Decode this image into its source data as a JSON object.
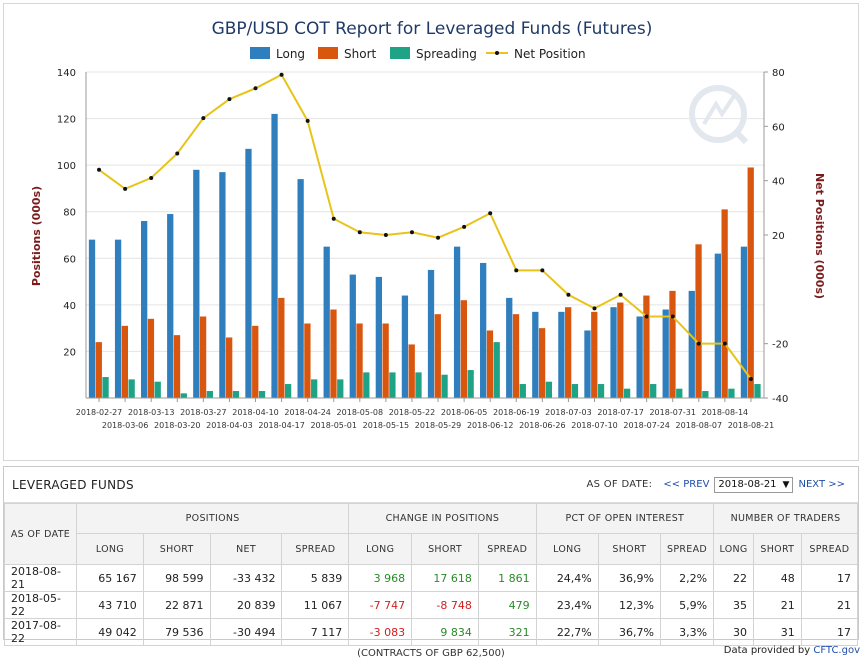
{
  "chart_data": {
    "type": "bar",
    "title": "GBP/USD COT Report for Leveraged Funds (Futures)",
    "ylabel": "Positions (000s)",
    "y2label": "Net Positions (000s)",
    "ylim": [
      0,
      140
    ],
    "y2lim": [
      -40,
      80
    ],
    "yticks": [
      20,
      40,
      60,
      80,
      100,
      120,
      140
    ],
    "y2ticks": [
      -40,
      -20,
      20,
      40,
      60,
      80
    ],
    "legend_position": "top",
    "categories": [
      "2018-02-27",
      "2018-03-06",
      "2018-03-13",
      "2018-03-20",
      "2018-03-27",
      "2018-04-03",
      "2018-04-10",
      "2018-04-17",
      "2018-04-24",
      "2018-05-01",
      "2018-05-08",
      "2018-05-15",
      "2018-05-22",
      "2018-05-29",
      "2018-06-05",
      "2018-06-12",
      "2018-06-19",
      "2018-06-26",
      "2018-07-03",
      "2018-07-10",
      "2018-07-17",
      "2018-07-24",
      "2018-07-31",
      "2018-08-07",
      "2018-08-14",
      "2018-08-21"
    ],
    "series": [
      {
        "name": "Long",
        "color": "#2f7ebd",
        "axis": "left",
        "kind": "bar",
        "values": [
          68,
          68,
          76,
          79,
          98,
          97,
          107,
          122,
          94,
          65,
          53,
          52,
          44,
          55,
          65,
          58,
          43,
          37,
          37,
          29,
          39,
          35,
          38,
          46,
          62,
          65
        ]
      },
      {
        "name": "Short",
        "color": "#d9560f",
        "axis": "left",
        "kind": "bar",
        "values": [
          24,
          31,
          34,
          27,
          35,
          26,
          31,
          43,
          32,
          38,
          32,
          32,
          23,
          36,
          42,
          29,
          36,
          30,
          39,
          37,
          41,
          44,
          46,
          66,
          81,
          99
        ]
      },
      {
        "name": "Spreading",
        "color": "#1fa386",
        "axis": "left",
        "kind": "bar",
        "values": [
          9,
          8,
          7,
          2,
          3,
          3,
          3,
          6,
          8,
          8,
          11,
          11,
          11,
          10,
          12,
          24,
          6,
          7,
          6,
          6,
          4,
          6,
          4,
          3,
          4,
          6
        ]
      },
      {
        "name": "Net Position",
        "color": "#e8c31a",
        "axis": "right",
        "kind": "line",
        "values": [
          44,
          37,
          41,
          50,
          63,
          70,
          74,
          79,
          62,
          26,
          21,
          20,
          21,
          19,
          23,
          28,
          7,
          7,
          -2,
          -7,
          -2,
          -10,
          -10,
          -20,
          -20,
          -33
        ]
      }
    ]
  },
  "table": {
    "title": "LEVERAGED FUNDS",
    "as_of_label": "AS OF DATE:",
    "prev_label": "<< PREV",
    "next_label": "NEXT >>",
    "selected_date": "2018-08-21",
    "col_as_of": "AS OF DATE",
    "groups": [
      "POSITIONS",
      "CHANGE IN POSITIONS",
      "PCT OF OPEN INTEREST",
      "NUMBER OF TRADERS"
    ],
    "subcols": {
      "positions": [
        "LONG",
        "SHORT",
        "NET",
        "SPREAD"
      ],
      "change": [
        "LONG",
        "SHORT",
        "SPREAD"
      ],
      "pct": [
        "LONG",
        "SHORT",
        "SPREAD"
      ],
      "traders": [
        "LONG",
        "SHORT",
        "SPREAD"
      ]
    },
    "rows": [
      {
        "date": "2018-08-21",
        "pos": [
          "65 167",
          "98 599",
          "-33 432",
          "5 839"
        ],
        "chg": [
          "3 968",
          "17 618",
          "1 861"
        ],
        "chg_sign": [
          "pos",
          "pos",
          "pos"
        ],
        "pct": [
          "24,4%",
          "36,9%",
          "2,2%"
        ],
        "traders": [
          "22",
          "48",
          "17"
        ]
      },
      {
        "date": "2018-05-22",
        "pos": [
          "43 710",
          "22 871",
          "20 839",
          "11 067"
        ],
        "chg": [
          "-7 747",
          "-8 748",
          "479"
        ],
        "chg_sign": [
          "neg",
          "neg",
          "pos"
        ],
        "pct": [
          "23,4%",
          "12,3%",
          "5,9%"
        ],
        "traders": [
          "35",
          "21",
          "21"
        ]
      },
      {
        "date": "2017-08-22",
        "pos": [
          "49 042",
          "79 536",
          "-30 494",
          "7 117"
        ],
        "chg": [
          "-3 083",
          "9 834",
          "321"
        ],
        "chg_sign": [
          "neg",
          "pos",
          "pos"
        ],
        "pct": [
          "22,7%",
          "36,7%",
          "3,3%"
        ],
        "traders": [
          "30",
          "31",
          "17"
        ]
      }
    ],
    "note": "(CONTRACTS OF GBP 62,500)"
  },
  "footer": {
    "text": "Data provided by",
    "source": "CFTC.gov"
  }
}
